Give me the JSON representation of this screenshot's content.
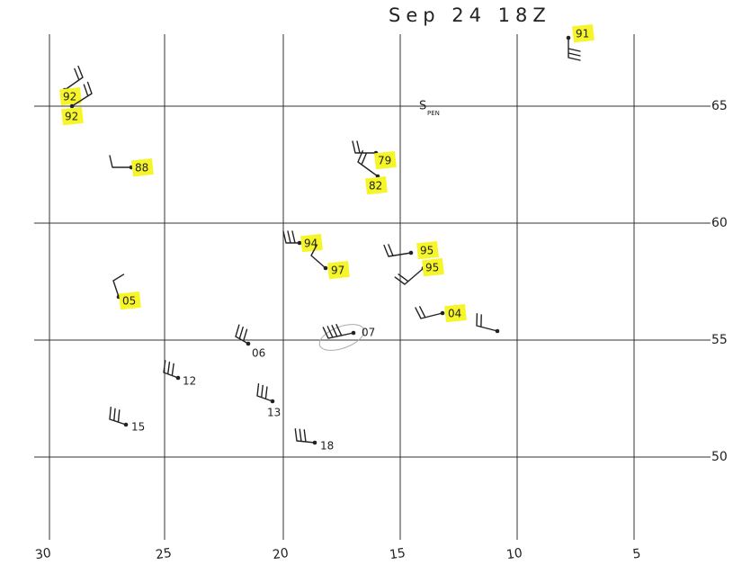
{
  "title": "Sep 24 18Z",
  "annotation": {
    "text": "S",
    "subscript": "PEN"
  },
  "x_axis": {
    "labels": [
      "30",
      "25",
      "20",
      "15",
      "10",
      "5"
    ]
  },
  "y_axis": {
    "labels": [
      "65",
      "60",
      "55",
      "50"
    ]
  },
  "stations": [
    {
      "label": "92",
      "highlighted": true
    },
    {
      "label": "92",
      "highlighted": true
    },
    {
      "label": "88",
      "highlighted": true
    },
    {
      "label": "79",
      "highlighted": true
    },
    {
      "label": "82",
      "highlighted": true
    },
    {
      "label": "94",
      "highlighted": true
    },
    {
      "label": "97",
      "highlighted": true
    },
    {
      "label": "95",
      "highlighted": true
    },
    {
      "label": "95",
      "highlighted": true
    },
    {
      "label": "05",
      "highlighted": true
    },
    {
      "label": "04",
      "highlighted": true
    },
    {
      "label": "07",
      "highlighted": false
    },
    {
      "highlighted": false
    },
    {
      "label": "06",
      "highlighted": false
    },
    {
      "label": "12",
      "highlighted": false
    },
    {
      "label": "13",
      "highlighted": false
    },
    {
      "label": "15",
      "highlighted": false
    },
    {
      "label": "18",
      "highlighted": false
    },
    {
      "label": "91",
      "highlighted": true
    }
  ]
}
